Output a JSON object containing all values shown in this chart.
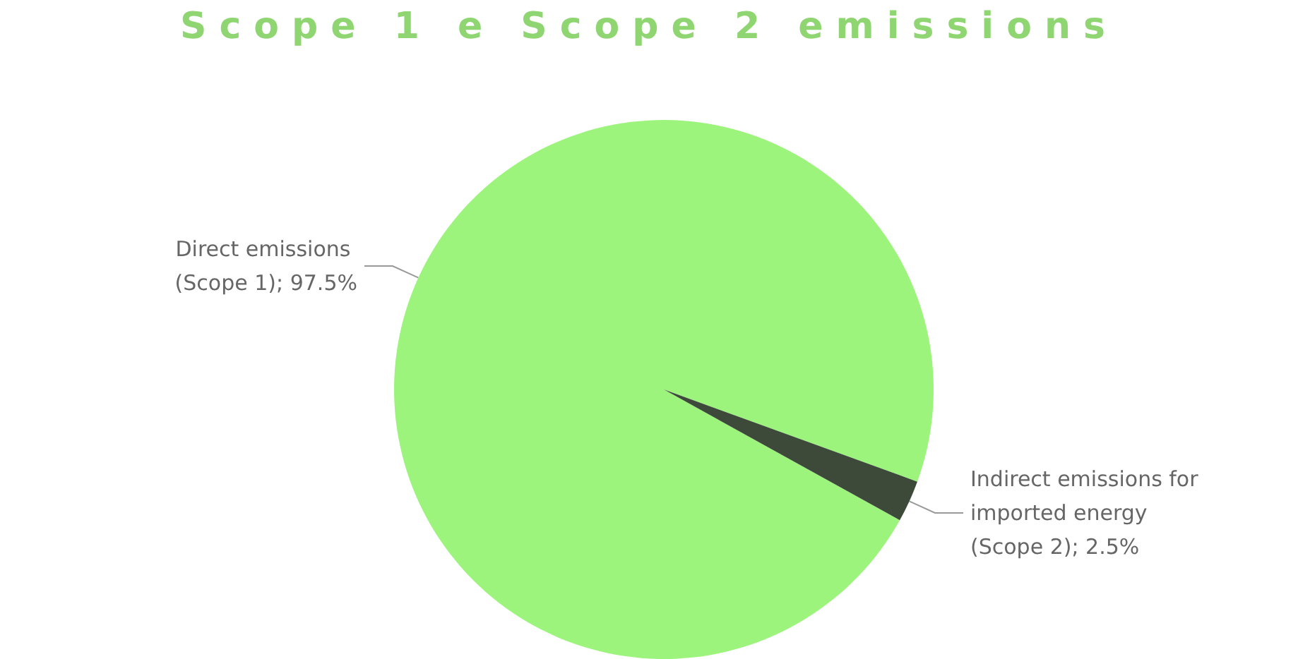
{
  "chart_data": {
    "type": "pie",
    "title": "Scope 1 e Scope 2 emissions",
    "categories": [
      "Direct emissions (Scope 1)",
      "Indirect emissions for imported energy (Scope 2)"
    ],
    "values": [
      97.5,
      2.5
    ],
    "value_labels": [
      "97.5%",
      "2.5%"
    ],
    "colors": [
      "#9df47d",
      "#3d4a3a"
    ],
    "data_labels": true,
    "legend": false
  }
}
